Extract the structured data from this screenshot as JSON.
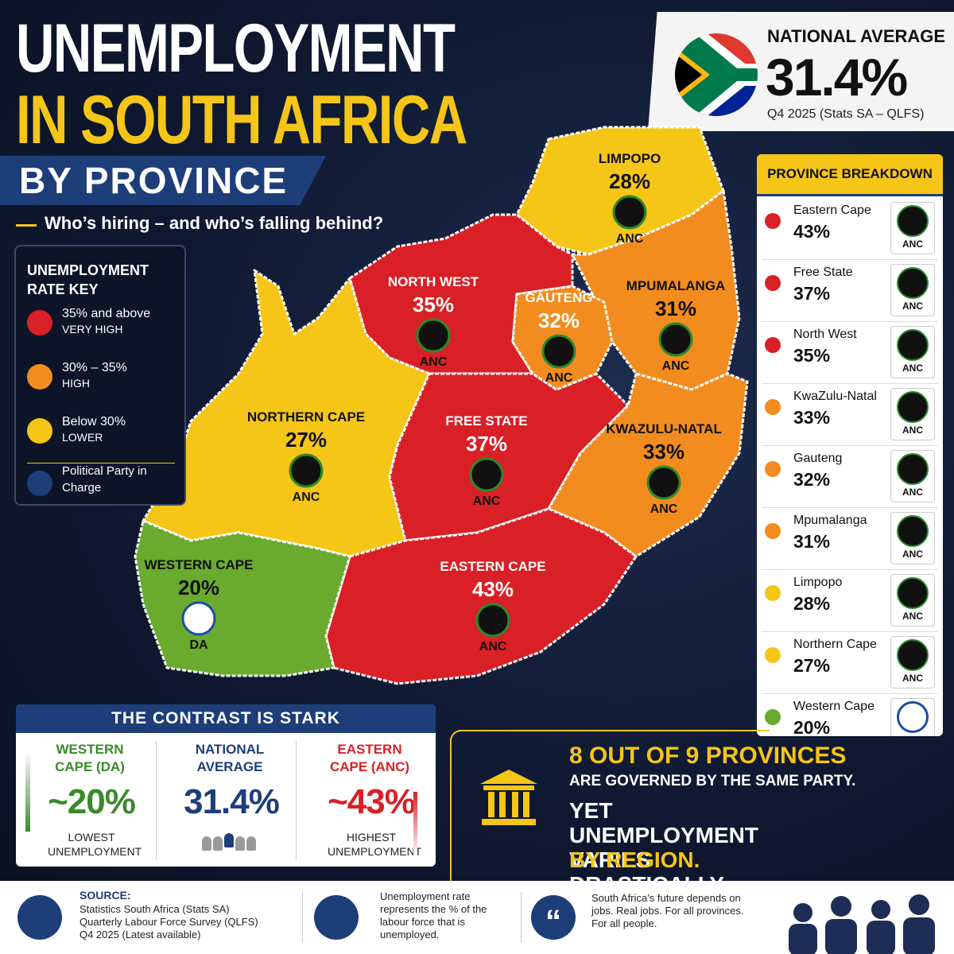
{
  "header": {
    "title_line1": "UNEMPLOYMENT",
    "title_line2": "IN SOUTH AFRICA",
    "subtitle": "BY PROVINCE",
    "tagline": "Who’s hiring – and who’s falling behind?"
  },
  "national": {
    "label": "NATIONAL AVERAGE",
    "value": "31.4%",
    "source": "Q4 2025 (Stats SA – QLFS)"
  },
  "key": {
    "title": "UNEMPLOYMENT RATE KEY",
    "items": [
      {
        "label": "35% and above",
        "sub": "VERY HIGH",
        "color": "#d92027"
      },
      {
        "label": "30% – 35%",
        "sub": "HIGH",
        "color": "#f28c1e"
      },
      {
        "label": "Below 30%",
        "sub": "LOWER",
        "color": "#f5c518"
      }
    ],
    "party_label": "Political Party in Charge"
  },
  "map": {
    "provinces": [
      {
        "name": "LIMPOPO",
        "rate": "28%",
        "party": "ANC",
        "color": "#f5c518"
      },
      {
        "name": "MPUMALANGA",
        "rate": "31%",
        "party": "ANC",
        "color": "#f28c1e"
      },
      {
        "name": "NORTH WEST",
        "rate": "35%",
        "party": "ANC",
        "color": "#d92027"
      },
      {
        "name": "NORTHERN CAPE",
        "rate": "27%",
        "party": "ANC",
        "color": "#f5c518"
      },
      {
        "name": "FREE STATE",
        "rate": "37%",
        "party": "ANC",
        "color": "#d92027"
      },
      {
        "name": "KWAZULU-NATAL",
        "rate": "33%",
        "party": "ANC",
        "color": "#f28c1e"
      },
      {
        "name": "EASTERN CAPE",
        "rate": "43%",
        "party": "ANC",
        "color": "#d92027"
      },
      {
        "name": "WESTERN CAPE",
        "rate": "20%",
        "party": "DA",
        "color": "#6aaa2f"
      },
      {
        "name": "GAUTENG",
        "rate": "32%",
        "party": "ANC",
        "color": "#f28c1e"
      }
    ]
  },
  "breakdown": {
    "title": "PROVINCE BREAKDOWN",
    "items": [
      {
        "name": "Eastern Cape",
        "rate": "43%",
        "party": "ANC",
        "color": "#d92027"
      },
      {
        "name": "Free State",
        "rate": "37%",
        "party": "ANC",
        "color": "#d92027"
      },
      {
        "name": "North West",
        "rate": "35%",
        "party": "ANC",
        "color": "#d92027"
      },
      {
        "name": "KwaZulu-Natal",
        "rate": "33%",
        "party": "ANC",
        "color": "#f28c1e"
      },
      {
        "name": "Gauteng",
        "rate": "32%",
        "party": "ANC",
        "color": "#f28c1e"
      },
      {
        "name": "Mpumalanga",
        "rate": "31%",
        "party": "ANC",
        "color": "#f28c1e"
      },
      {
        "name": "Limpopo",
        "rate": "28%",
        "party": "ANC",
        "color": "#f5c518"
      },
      {
        "name": "Northern Cape",
        "rate": "27%",
        "party": "ANC",
        "color": "#f5c518"
      },
      {
        "name": "Western Cape",
        "rate": "20%",
        "party": "DA",
        "color": "#6aaa2f"
      }
    ]
  },
  "contrast": {
    "title": "THE CONTRAST IS STARK",
    "columns": [
      {
        "title": "WESTERN CAPE (DA)",
        "value": "~20%",
        "caption": "LOWEST UNEMPLOYMENT",
        "color": "#3a8a2a"
      },
      {
        "title": "NATIONAL AVERAGE",
        "value": "31.4%",
        "color": "#1e3e7a"
      },
      {
        "title": "EASTERN CAPE (ANC)",
        "value": "~43%",
        "caption": "HIGHEST UNEMPLOYMENT",
        "color": "#d92027"
      }
    ]
  },
  "callout": {
    "line1": "8 OUT OF 9 PROVINCES",
    "line2": "ARE GOVERNED BY THE SAME PARTY.",
    "line3": "YET UNEMPLOYMENT VARIES DRASTICALLY",
    "line4": "BY REGION."
  },
  "footer": {
    "source_title": "SOURCE:",
    "source_lines": [
      "Statistics South Africa (Stats SA)",
      "Quarterly Labour Force Survey (QLFS)",
      "Q4 2025 (Latest available)"
    ],
    "definition": "Unemployment rate represents the % of the labour force that is unemployed.",
    "quote": "South Africa’s future depends on jobs. Real jobs. For all provinces. For all people."
  }
}
